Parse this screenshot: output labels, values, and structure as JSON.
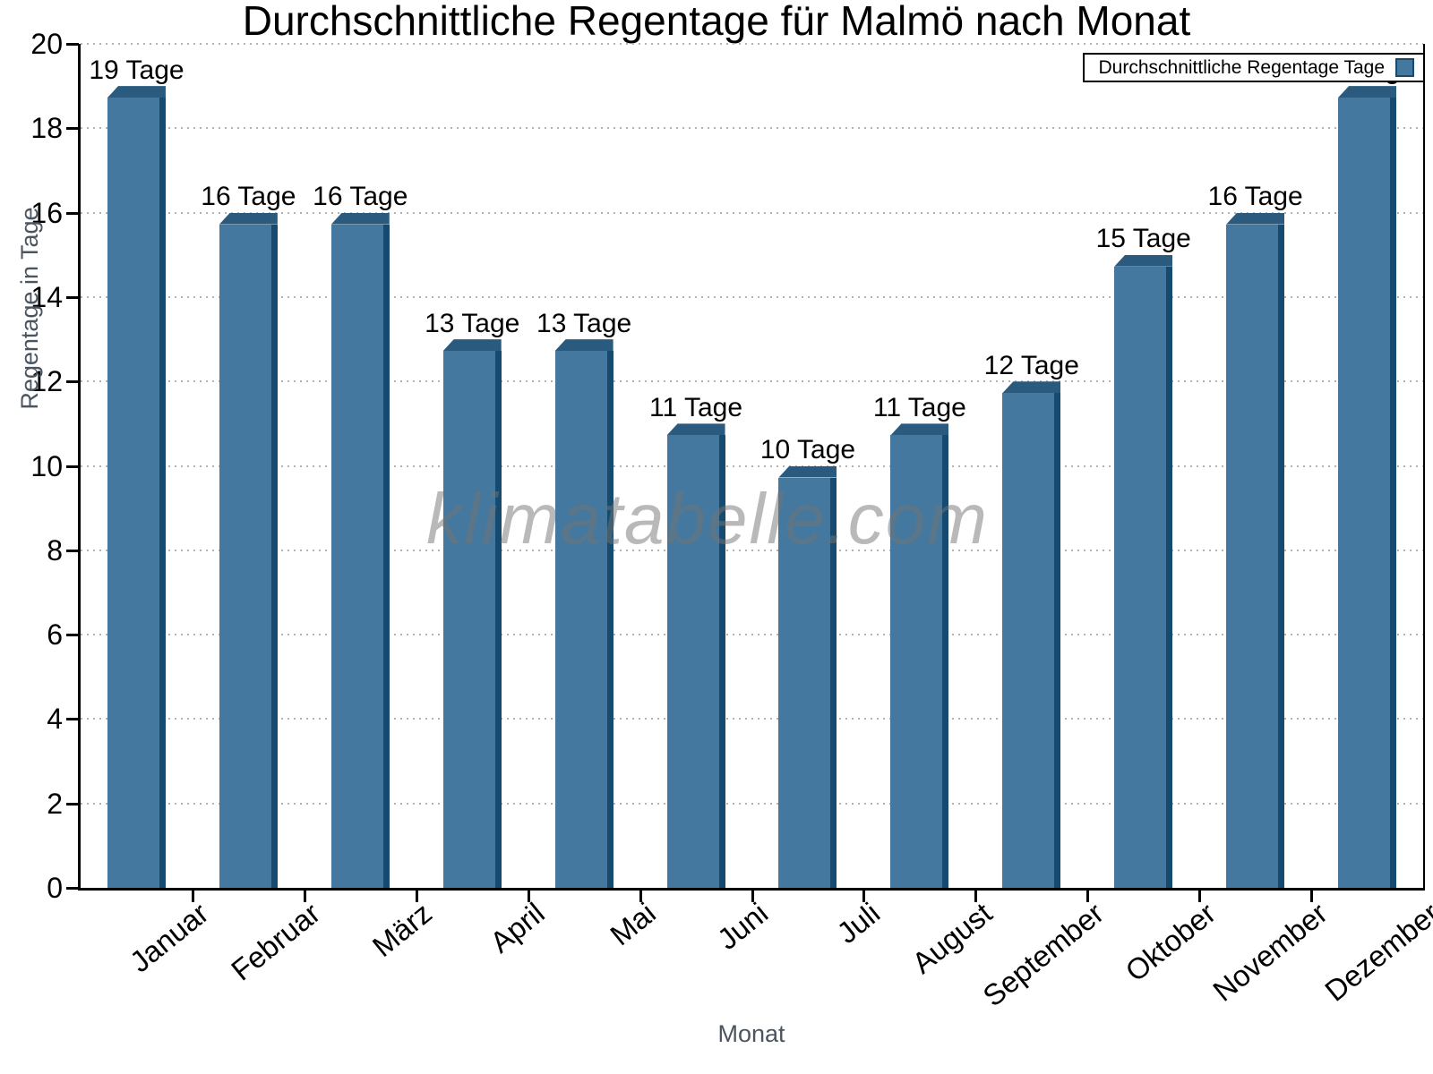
{
  "chart_data": {
    "type": "bar",
    "title": "Durchschnittliche Regentage für Malmö nach Monat",
    "xlabel": "Monat",
    "ylabel": "Regentage in Tage",
    "categories": [
      "Januar",
      "Februar",
      "März",
      "April",
      "Mai",
      "Juni",
      "Juli",
      "August",
      "September",
      "Oktober",
      "November",
      "Dezember"
    ],
    "values": [
      19,
      16,
      16,
      13,
      13,
      11,
      10,
      11,
      12,
      15,
      16,
      19
    ],
    "bar_labels": [
      "19 Tage",
      "16 Tage",
      "16 Tage",
      "13 Tage",
      "13 Tage",
      "11 Tage",
      "10 Tage",
      "11 Tage",
      "12 Tage",
      "15 Tage",
      "16 Tage",
      "19 Tage"
    ],
    "ylim": [
      0,
      20
    ],
    "yticks": [
      0,
      2,
      4,
      6,
      8,
      10,
      12,
      14,
      16,
      18,
      20
    ],
    "grid": "horizontal-dotted",
    "legend": {
      "label": "Durchschnittliche Regentage Tage",
      "position": "top-right"
    },
    "watermark": "klimatabelle.com",
    "colors": {
      "bar_face": "#45789E",
      "bar_side": "#164A6E",
      "bar_top": "#2A5B7E",
      "grid": "#B3B3B3",
      "axis": "#000000",
      "axis_title": "#4A5560"
    }
  }
}
